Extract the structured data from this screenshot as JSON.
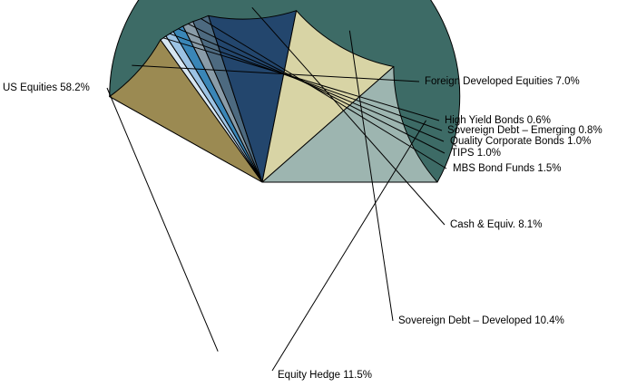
{
  "chart_data": {
    "type": "pie",
    "title": "",
    "legend": "none",
    "slices": [
      {
        "label": "US Equities",
        "value": 58.2,
        "color": "#3d6b66",
        "text": "US Equities 58.2%"
      },
      {
        "label": "Foreign Developed Equities",
        "value": 7.0,
        "color": "#9b8a52",
        "text": "Foreign Developed Equities 7.0%"
      },
      {
        "label": "High Yield Bonds",
        "value": 0.6,
        "color": "#d6e6f2",
        "text": "High Yield Bonds 0.6%"
      },
      {
        "label": "Sovereign Debt – Emerging",
        "value": 0.8,
        "color": "#9cc3e4",
        "text": "Sovereign Debt – Emerging 0.8%"
      },
      {
        "label": "Quality Corporate Bonds",
        "value": 1.0,
        "color": "#3a86b7",
        "text": "Quality Corporate Bonds 1.0%"
      },
      {
        "label": "TIPS",
        "value": 1.0,
        "color": "#8a9ca8",
        "text": "TIPS 1.0%"
      },
      {
        "label": "MBS Bond Funds",
        "value": 1.5,
        "color": "#4d6a80",
        "text": "MBS Bond Funds 1.5%"
      },
      {
        "label": "Cash & Equiv.",
        "value": 8.1,
        "color": "#23466d",
        "text": "Cash & Equiv. 8.1%"
      },
      {
        "label": "Sovereign Debt – Developed",
        "value": 10.4,
        "color": "#d8d4a5",
        "text": "Sovereign Debt – Developed 10.4%"
      },
      {
        "label": "Equity Hedge",
        "value": 11.5,
        "color": "#9db5b0",
        "text": "Equity Hedge 11.5%"
      }
    ]
  }
}
